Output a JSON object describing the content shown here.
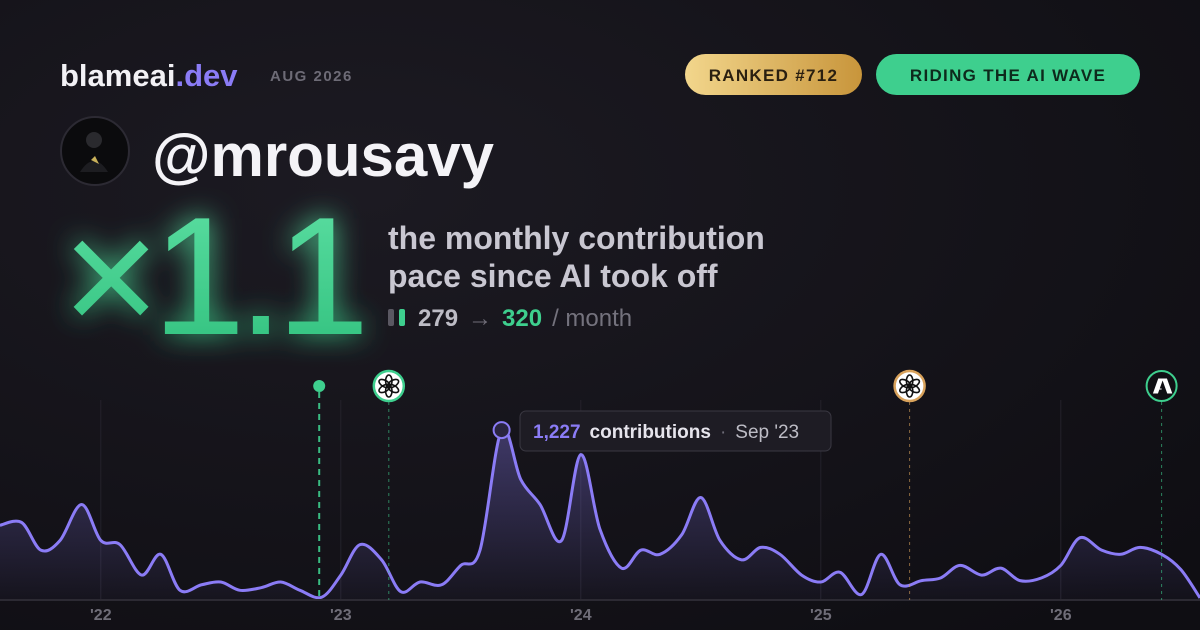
{
  "header": {
    "brand": "blameai",
    "brand_suffix": ".dev",
    "period": "AUG 2026",
    "badges": [
      "RANKED #712",
      "RIDING THE AI WAVE"
    ],
    "handle": "@mrousavy",
    "multiplier": "×1.1",
    "description": [
      "the monthly contribution",
      "pace since AI took off"
    ],
    "stats": {
      "before": 279,
      "arrow": "→",
      "after": 320,
      "unit": "/ month"
    }
  },
  "chart_data": {
    "type": "area",
    "x": [
      2021.58,
      2021.67,
      2021.75,
      2021.83,
      2021.92,
      2022.0,
      2022.08,
      2022.17,
      2022.25,
      2022.33,
      2022.42,
      2022.5,
      2022.58,
      2022.67,
      2022.75,
      2022.83,
      2022.92,
      2023.0,
      2023.08,
      2023.17,
      2023.25,
      2023.33,
      2023.42,
      2023.5,
      2023.58,
      2023.67,
      2023.75,
      2023.83,
      2023.92,
      2024.0,
      2024.08,
      2024.17,
      2024.25,
      2024.33,
      2024.42,
      2024.5,
      2024.58,
      2024.67,
      2024.75,
      2024.83,
      2024.92,
      2025.0,
      2025.08,
      2025.17,
      2025.25,
      2025.33,
      2025.42,
      2025.5,
      2025.58,
      2025.67,
      2025.75,
      2025.83,
      2025.92,
      2026.0,
      2026.08,
      2026.17,
      2026.25,
      2026.33,
      2026.42,
      2026.5,
      2026.58
    ],
    "values": [
      540,
      560,
      360,
      430,
      690,
      430,
      400,
      180,
      330,
      70,
      110,
      130,
      70,
      90,
      130,
      70,
      20,
      180,
      400,
      290,
      60,
      130,
      110,
      250,
      360,
      1227,
      870,
      690,
      430,
      1050,
      510,
      230,
      360,
      330,
      470,
      740,
      430,
      290,
      380,
      330,
      180,
      130,
      200,
      40,
      330,
      110,
      140,
      160,
      250,
      180,
      230,
      140,
      160,
      250,
      450,
      360,
      330,
      380,
      330,
      220,
      15
    ],
    "color": "#8b7cf6",
    "xlim": [
      2021.58,
      2026.58
    ],
    "ylim": [
      0,
      1300
    ],
    "xticks": [
      {
        "value": 2022,
        "label": "'22"
      },
      {
        "value": 2023,
        "label": "'23"
      },
      {
        "value": 2024,
        "label": "'24"
      },
      {
        "value": 2025,
        "label": "'25"
      },
      {
        "value": 2026,
        "label": "'26"
      }
    ],
    "grid": true,
    "events": [
      {
        "x": 2022.91,
        "color": "#3ecf8e"
      },
      {
        "x": 2023.2,
        "color": "#3ecf8e"
      },
      {
        "x": 2025.37,
        "color": "#d9a25b"
      },
      {
        "x": 2026.42,
        "color": "#3ecf8e"
      }
    ],
    "highlight": {
      "x": 2023.67,
      "value": 1227,
      "label": "1,227",
      "text": "contributions",
      "separator": "·",
      "date": "Sep '23"
    }
  }
}
